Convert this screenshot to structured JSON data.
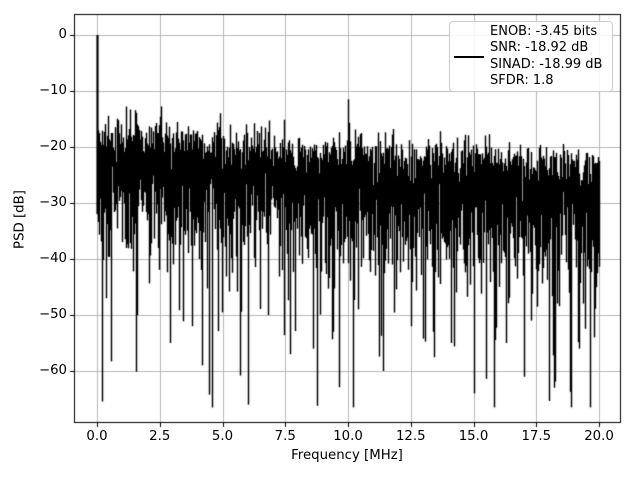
{
  "figure": {
    "background": "#ffffff"
  },
  "chart_data": {
    "type": "line",
    "title": "",
    "xlabel": "Frequency [MHz]",
    "ylabel": "PSD [dB]",
    "x_ticks": [
      0,
      2.5,
      5,
      7.5,
      10,
      12.5,
      15,
      17.5,
      20
    ],
    "x_tick_labels": [
      "0.0",
      "2.5",
      "5.0",
      "7.5",
      "10.0",
      "12.5",
      "15.0",
      "17.5",
      "20.0"
    ],
    "y_ticks": [
      0,
      -10,
      -20,
      -30,
      -40,
      -50,
      -60
    ],
    "y_tick_labels": [
      "0",
      "−10",
      "−20",
      "−30",
      "−40",
      "−50",
      "−60"
    ],
    "xlim": [
      -0.92,
      20.84
    ],
    "ylim": [
      -69.1,
      3.75
    ],
    "grid": true,
    "grid_color": "#b0b0b0",
    "line_color": "#000000",
    "legend": {
      "position": "upper right",
      "lines": [
        "ENOB: -3.45 bits",
        "SNR: -18.92 dB",
        "SINAD: -18.99 dB",
        "SFDR: 1.8"
      ]
    },
    "metrics": {
      "enob_bits": -3.45,
      "snr_db": -18.92,
      "sinad_db": -18.99,
      "sfdr": 1.8
    },
    "series": [
      {
        "name": "psd-trace",
        "description": "Dense noise-like power spectral density trace from 0 to 20 MHz: narrow DC spike reaching 0 dB at 0 MHz; noise band whose top envelope slopes from about -13 dB at 0 MHz to -19 dB at 20 MHz; solid dense band down to about -35 dB; frequent narrow downward nulls reaching -45 to -66 dB",
        "freq_range_mhz": [
          0,
          20
        ],
        "dc_spike": {
          "freq_mhz": 0.0,
          "psd_db": 0.0
        },
        "top_envelope_db": {
          "at_0mhz": -13.2,
          "at_20mhz": -19.0
        },
        "dense_band_bottom_db": {
          "at_0mhz": -35.0,
          "at_20mhz": -38.0
        },
        "notable_peak": {
          "freq_mhz": 10.0,
          "psd_db": -11.5
        },
        "min_psd_db": -66,
        "notable_nulls": [
          {
            "freq_mhz": 0.35,
            "psd_db": -47
          },
          {
            "freq_mhz": 1.6,
            "psd_db": -50
          },
          {
            "freq_mhz": 2.9,
            "psd_db": -55
          },
          {
            "freq_mhz": 3.8,
            "psd_db": -52
          },
          {
            "freq_mhz": 4.2,
            "psd_db": -59
          },
          {
            "freq_mhz": 6.0,
            "psd_db": -66
          },
          {
            "freq_mhz": 7.7,
            "psd_db": -57
          },
          {
            "freq_mhz": 8.6,
            "psd_db": -56
          },
          {
            "freq_mhz": 9.4,
            "psd_db": -53
          },
          {
            "freq_mhz": 10.4,
            "psd_db": -49
          },
          {
            "freq_mhz": 11.4,
            "psd_db": -60
          },
          {
            "freq_mhz": 12.5,
            "psd_db": -52
          },
          {
            "freq_mhz": 13.4,
            "psd_db": -53
          },
          {
            "freq_mhz": 14.1,
            "psd_db": -55
          },
          {
            "freq_mhz": 15.0,
            "psd_db": -64
          },
          {
            "freq_mhz": 16.3,
            "psd_db": -55
          },
          {
            "freq_mhz": 17.3,
            "psd_db": -51
          },
          {
            "freq_mhz": 18.2,
            "psd_db": -63
          },
          {
            "freq_mhz": 19.2,
            "psd_db": -56
          },
          {
            "freq_mhz": 19.8,
            "psd_db": -54
          }
        ]
      }
    ]
  }
}
